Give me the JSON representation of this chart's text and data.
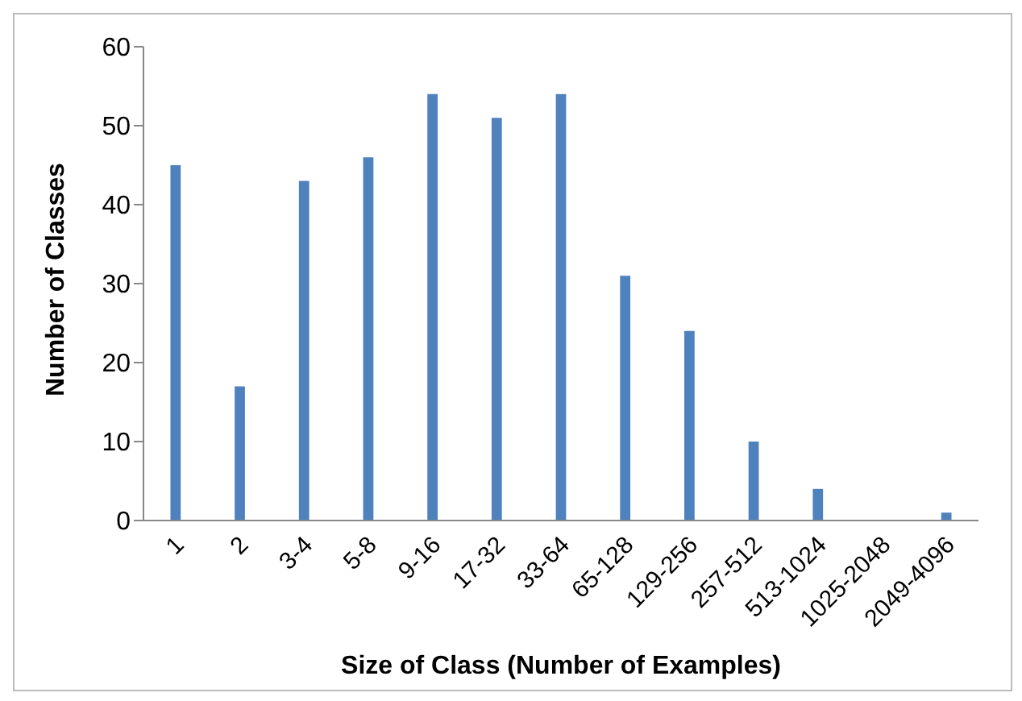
{
  "chart_data": {
    "type": "bar",
    "xlabel": "Size of Class (Number of Examples)",
    "ylabel": "Number of Classes",
    "categories": [
      "1",
      "2",
      "3-4",
      "5-8",
      "9-16",
      "17-32",
      "33-64",
      "65-128",
      "129-256",
      "257-512",
      "513-1024",
      "1025-2048",
      "2049-4096"
    ],
    "values": [
      45,
      17,
      43,
      46,
      54,
      51,
      54,
      31,
      24,
      10,
      4,
      0,
      1
    ],
    "color": "#4f81bd",
    "ylim": [
      0,
      60
    ],
    "yticks": [
      0,
      10,
      20,
      30,
      40,
      50,
      60
    ],
    "grid": false,
    "legend": false
  }
}
